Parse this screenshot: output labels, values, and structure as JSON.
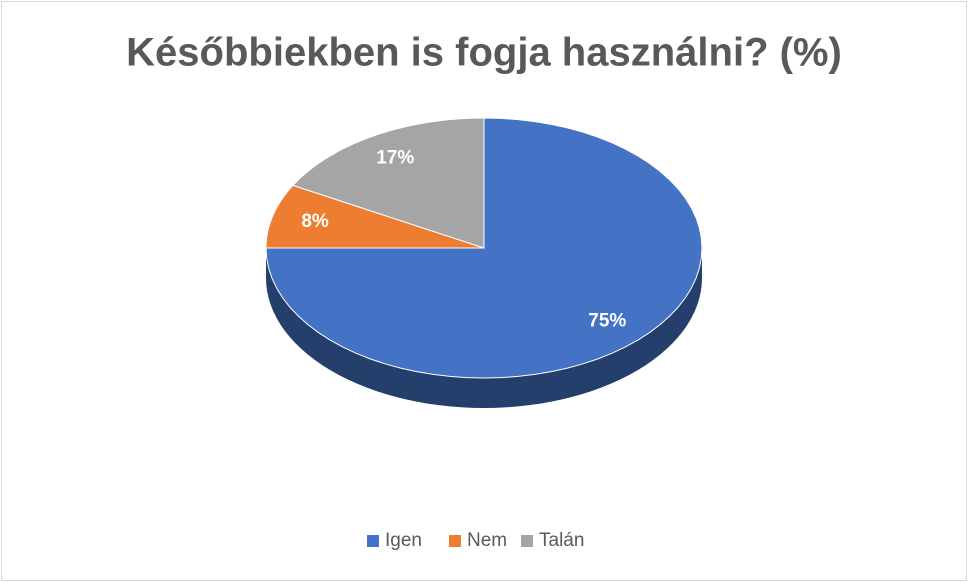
{
  "chart_data": {
    "type": "pie",
    "title": "Későbbiekben is fogja használni? (%)",
    "categories": [
      "Igen",
      "Nem",
      "Talán"
    ],
    "values": [
      75,
      8,
      17
    ],
    "value_labels": [
      "75%",
      "8%",
      "17%"
    ],
    "colors": [
      "#4472c4",
      "#ed7d31",
      "#a5a5a5"
    ],
    "legend": "bottom"
  }
}
